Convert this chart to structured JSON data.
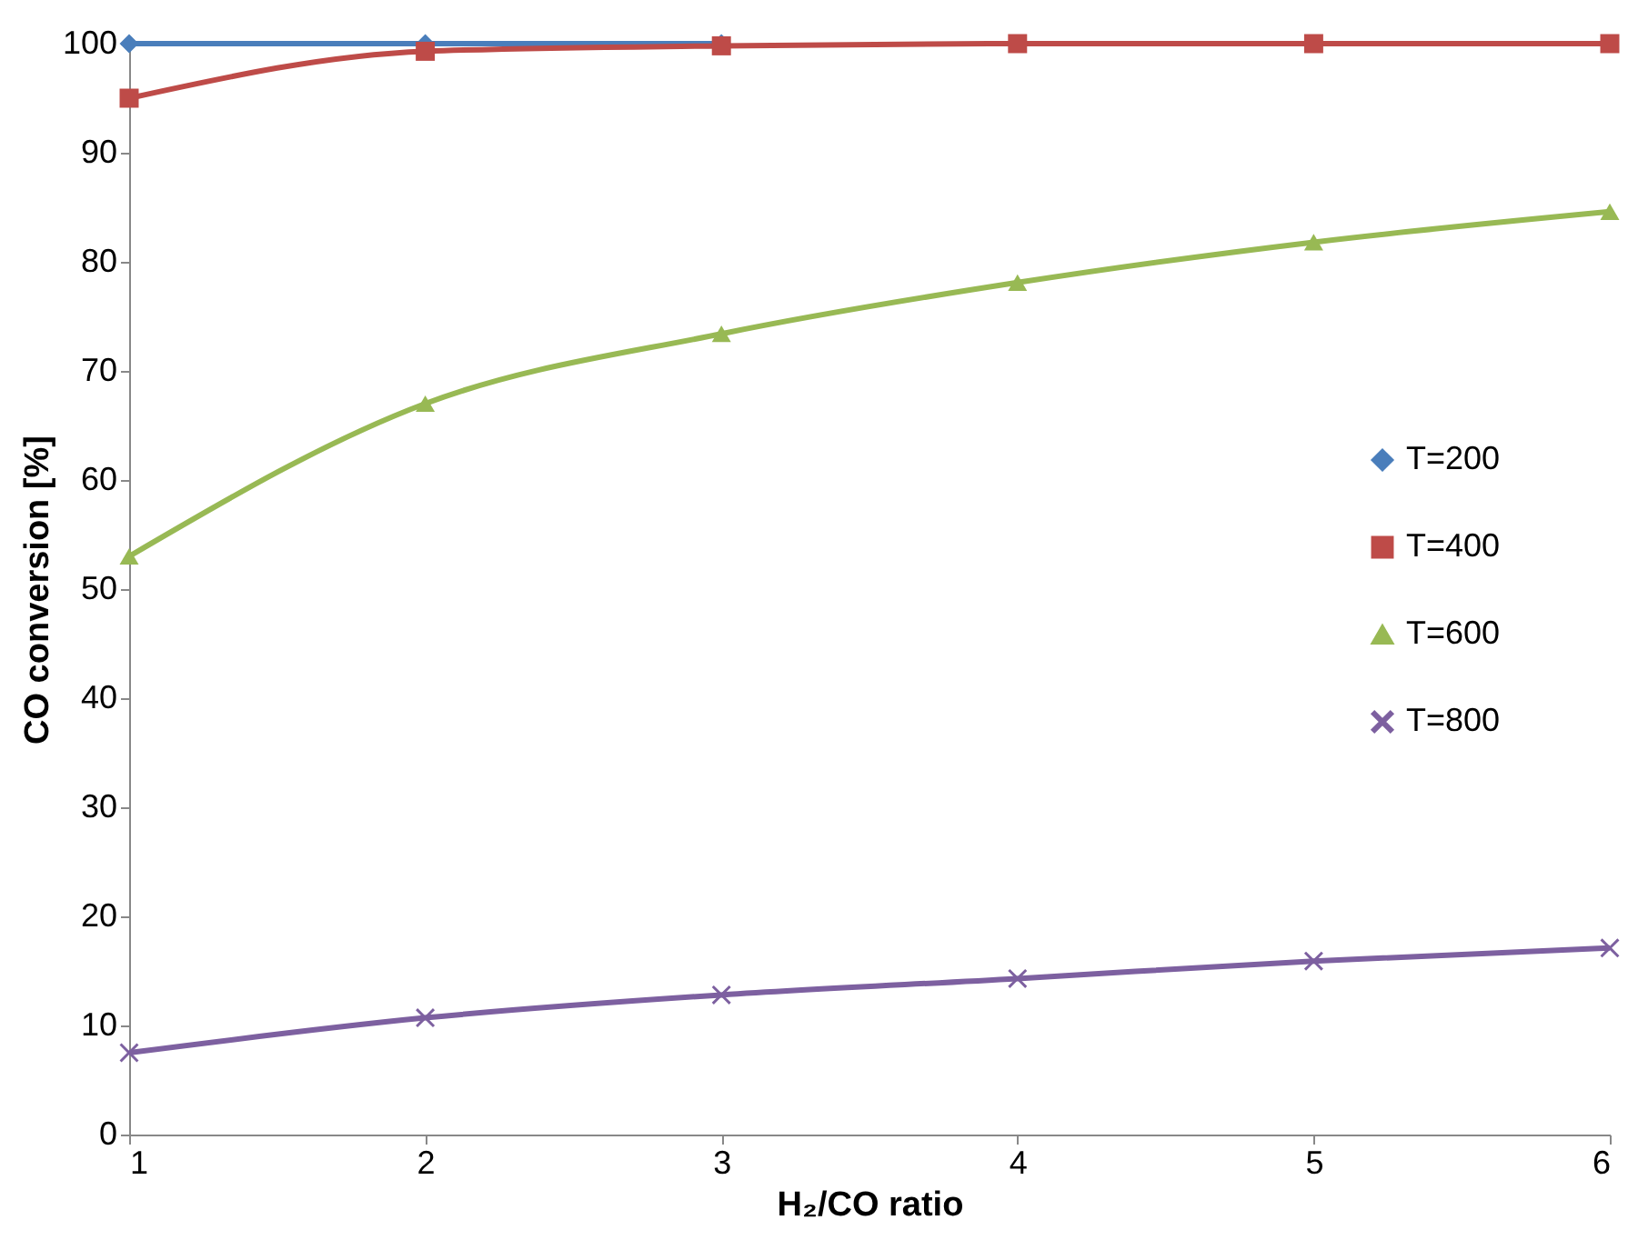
{
  "chart_data": {
    "type": "line",
    "xlabel": "H₂/CO ratio",
    "ylabel": "CO conversion [%]",
    "x": [
      1,
      2,
      3,
      4,
      5,
      6
    ],
    "xlim": [
      1,
      6
    ],
    "xticks": [
      1,
      2,
      3,
      4,
      5,
      6
    ],
    "ylim": [
      0,
      100
    ],
    "yticks": [
      0,
      10,
      20,
      30,
      40,
      50,
      60,
      70,
      80,
      90,
      100
    ],
    "grid": false,
    "legend": "right",
    "line_style": "solid",
    "series": [
      {
        "name": "T=200",
        "color": "#4a7ebb",
        "marker": "diamond",
        "values": [
          100,
          100,
          100,
          null,
          null,
          null
        ]
      },
      {
        "name": "T=400",
        "color": "#be4b48",
        "marker": "square",
        "values": [
          95,
          99.3,
          99.8,
          100,
          100,
          100
        ]
      },
      {
        "name": "T=600",
        "color": "#98b954",
        "marker": "triangle",
        "values": [
          53,
          67,
          73.4,
          78.1,
          81.8,
          84.6
        ]
      },
      {
        "name": "T=800",
        "color": "#7d60a0",
        "marker": "cross",
        "values": [
          7.5,
          10.7,
          12.8,
          14.3,
          15.9,
          17.1
        ]
      }
    ]
  }
}
